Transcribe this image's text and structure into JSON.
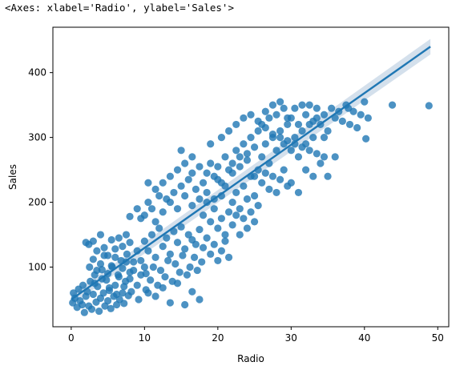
{
  "output_repr": "<Axes: xlabel='Radio', ylabel='Sales'>",
  "colors": {
    "points": "#1f77b4",
    "line": "#1f77b4",
    "band": "#b7cbe0"
  },
  "chart_data": {
    "type": "scatter",
    "xlabel": "Radio",
    "ylabel": "Sales",
    "xlim": [
      -2.5,
      51.5
    ],
    "ylim": [
      8,
      470
    ],
    "xticks": [
      0,
      10,
      20,
      30,
      40,
      50
    ],
    "yticks": [
      100,
      200,
      300,
      400
    ],
    "xtick_labels": [
      "0",
      "10",
      "20",
      "30",
      "40",
      "50"
    ],
    "ytick_labels": [
      "100",
      "200",
      "300",
      "400"
    ],
    "grid": false,
    "legend": "none",
    "regression": {
      "x": [
        0.0,
        49.0
      ],
      "y": [
        50,
        440
      ],
      "ci_halfwidth_at_ends": [
        8,
        12
      ]
    },
    "points": [
      [
        0.2,
        45
      ],
      [
        0.3,
        60
      ],
      [
        0.5,
        52
      ],
      [
        0.8,
        38
      ],
      [
        1.0,
        66
      ],
      [
        1.2,
        48
      ],
      [
        1.5,
        42
      ],
      [
        1.6,
        72
      ],
      [
        1.8,
        30
      ],
      [
        2.0,
        55
      ],
      [
        2.2,
        62
      ],
      [
        2.4,
        40
      ],
      [
        2.6,
        78
      ],
      [
        2.8,
        35
      ],
      [
        3.0,
        58
      ],
      [
        3.2,
        88
      ],
      [
        3.4,
        46
      ],
      [
        3.6,
        70
      ],
      [
        3.8,
        32
      ],
      [
        4.0,
        52
      ],
      [
        4.2,
        96
      ],
      [
        4.4,
        60
      ],
      [
        4.6,
        40
      ],
      [
        4.8,
        80
      ],
      [
        5.0,
        48
      ],
      [
        5.2,
        64
      ],
      [
        5.4,
        36
      ],
      [
        5.6,
        100
      ],
      [
        5.8,
        55
      ],
      [
        6.0,
        72
      ],
      [
        6.2,
        42
      ],
      [
        6.4,
        88
      ],
      [
        6.6,
        50
      ],
      [
        6.8,
        110
      ],
      [
        7.0,
        60
      ],
      [
        7.2,
        44
      ],
      [
        7.4,
        78
      ],
      [
        7.6,
        120
      ],
      [
        7.8,
        56
      ],
      [
        8.0,
        92
      ],
      [
        2.0,
        138
      ],
      [
        2.4,
        135
      ],
      [
        3.0,
        140
      ],
      [
        3.5,
        125
      ],
      [
        4.0,
        150
      ],
      [
        4.5,
        130
      ],
      [
        5.0,
        118
      ],
      [
        5.5,
        142
      ],
      [
        6.0,
        128
      ],
      [
        6.5,
        145
      ],
      [
        7.0,
        132
      ],
      [
        7.5,
        150
      ],
      [
        8.0,
        138
      ],
      [
        8.5,
        108
      ],
      [
        9.0,
        125
      ],
      [
        9.5,
        110
      ],
      [
        2.5,
        100
      ],
      [
        3.0,
        112
      ],
      [
        3.5,
        95
      ],
      [
        4.0,
        105
      ],
      [
        4.5,
        118
      ],
      [
        5.0,
        90
      ],
      [
        5.5,
        102
      ],
      [
        6.0,
        115
      ],
      [
        6.5,
        85
      ],
      [
        7.0,
        98
      ],
      [
        7.5,
        108
      ],
      [
        8.0,
        82
      ],
      [
        8.5,
        95
      ],
      [
        9.0,
        72
      ],
      [
        9.5,
        88
      ],
      [
        10.0,
        100
      ],
      [
        3.2,
        75
      ],
      [
        4.2,
        82
      ],
      [
        5.2,
        68
      ],
      [
        6.2,
        58
      ],
      [
        7.2,
        70
      ],
      [
        8.2,
        62
      ],
      [
        9.2,
        50
      ],
      [
        10.2,
        65
      ],
      [
        10.0,
        140
      ],
      [
        10.5,
        125
      ],
      [
        11.0,
        150
      ],
      [
        11.5,
        115
      ],
      [
        12.0,
        160
      ],
      [
        12.5,
        132
      ],
      [
        13.0,
        145
      ],
      [
        13.5,
        120
      ],
      [
        14.0,
        155
      ],
      [
        14.5,
        138
      ],
      [
        15.0,
        162
      ],
      [
        15.5,
        128
      ],
      [
        16.0,
        150
      ],
      [
        16.5,
        142
      ],
      [
        17.0,
        135
      ],
      [
        17.5,
        158
      ],
      [
        10.2,
        90
      ],
      [
        10.8,
        80
      ],
      [
        11.2,
        100
      ],
      [
        11.8,
        72
      ],
      [
        12.2,
        95
      ],
      [
        12.8,
        85
      ],
      [
        13.2,
        110
      ],
      [
        13.8,
        78
      ],
      [
        14.2,
        105
      ],
      [
        14.8,
        92
      ],
      [
        15.2,
        118
      ],
      [
        15.8,
        88
      ],
      [
        16.2,
        100
      ],
      [
        16.8,
        115
      ],
      [
        17.2,
        95
      ],
      [
        17.8,
        108
      ],
      [
        10.5,
        60
      ],
      [
        11.5,
        55
      ],
      [
        12.5,
        68
      ],
      [
        13.5,
        45
      ],
      [
        14.5,
        75
      ],
      [
        15.5,
        42
      ],
      [
        16.5,
        62
      ],
      [
        17.5,
        50
      ],
      [
        10.0,
        180
      ],
      [
        10.5,
        200
      ],
      [
        11.0,
        190
      ],
      [
        11.5,
        220
      ],
      [
        12.0,
        210
      ],
      [
        12.5,
        230
      ],
      [
        13.0,
        205
      ],
      [
        13.5,
        240
      ],
      [
        14.0,
        215
      ],
      [
        14.5,
        250
      ],
      [
        15.0,
        225
      ],
      [
        15.5,
        260
      ],
      [
        16.0,
        235
      ],
      [
        16.5,
        245
      ],
      [
        17.0,
        220
      ],
      [
        17.5,
        255
      ],
      [
        18.0,
        180
      ],
      [
        18.5,
        200
      ],
      [
        19.0,
        170
      ],
      [
        19.5,
        190
      ],
      [
        20.0,
        160
      ],
      [
        20.5,
        175
      ],
      [
        21.0,
        150
      ],
      [
        21.5,
        185
      ],
      [
        18.0,
        230
      ],
      [
        18.5,
        245
      ],
      [
        19.0,
        260
      ],
      [
        19.5,
        240
      ],
      [
        20.0,
        255
      ],
      [
        20.5,
        230
      ],
      [
        21.0,
        270
      ],
      [
        21.5,
        250
      ],
      [
        18.0,
        130
      ],
      [
        18.5,
        145
      ],
      [
        19.0,
        120
      ],
      [
        19.5,
        135
      ],
      [
        20.0,
        110
      ],
      [
        20.5,
        125
      ],
      [
        21.0,
        140
      ],
      [
        21.5,
        115
      ],
      [
        22.0,
        200
      ],
      [
        22.5,
        215
      ],
      [
        23.0,
        190
      ],
      [
        23.5,
        225
      ],
      [
        24.0,
        205
      ],
      [
        24.5,
        240
      ],
      [
        25.0,
        210
      ],
      [
        25.5,
        250
      ],
      [
        22.0,
        260
      ],
      [
        22.5,
        280
      ],
      [
        23.0,
        270
      ],
      [
        23.5,
        290
      ],
      [
        24.0,
        275
      ],
      [
        24.5,
        300
      ],
      [
        25.0,
        285
      ],
      [
        25.5,
        310
      ],
      [
        22.0,
        165
      ],
      [
        22.5,
        180
      ],
      [
        23.0,
        150
      ],
      [
        23.5,
        175
      ],
      [
        24.0,
        160
      ],
      [
        24.5,
        185
      ],
      [
        25.0,
        170
      ],
      [
        25.5,
        195
      ],
      [
        26.0,
        270
      ],
      [
        26.5,
        290
      ],
      [
        27.0,
        260
      ],
      [
        27.5,
        300
      ],
      [
        28.0,
        280
      ],
      [
        28.5,
        310
      ],
      [
        29.0,
        290
      ],
      [
        29.5,
        320
      ],
      [
        26.0,
        230
      ],
      [
        26.5,
        245
      ],
      [
        27.0,
        220
      ],
      [
        27.5,
        240
      ],
      [
        28.0,
        215
      ],
      [
        28.5,
        235
      ],
      [
        29.0,
        250
      ],
      [
        29.5,
        225
      ],
      [
        26.0,
        320
      ],
      [
        26.5,
        340
      ],
      [
        27.0,
        330
      ],
      [
        27.5,
        350
      ],
      [
        28.0,
        335
      ],
      [
        28.5,
        355
      ],
      [
        29.0,
        345
      ],
      [
        29.5,
        330
      ],
      [
        30.0,
        280
      ],
      [
        30.5,
        300
      ],
      [
        31.0,
        270
      ],
      [
        31.5,
        310
      ],
      [
        32.0,
        290
      ],
      [
        32.5,
        320
      ],
      [
        33.0,
        300
      ],
      [
        33.5,
        330
      ],
      [
        30.0,
        330
      ],
      [
        30.5,
        345
      ],
      [
        31.0,
        320
      ],
      [
        31.5,
        350
      ],
      [
        32.0,
        335
      ],
      [
        32.5,
        350
      ],
      [
        33.0,
        325
      ],
      [
        33.5,
        345
      ],
      [
        30.0,
        230
      ],
      [
        31.0,
        215
      ],
      [
        32.0,
        250
      ],
      [
        33.0,
        240
      ],
      [
        34.0,
        260
      ],
      [
        35.0,
        240
      ],
      [
        36.0,
        270
      ],
      [
        34.5,
        300
      ],
      [
        34.0,
        320
      ],
      [
        34.5,
        335
      ],
      [
        35.0,
        310
      ],
      [
        35.5,
        345
      ],
      [
        36.0,
        330
      ],
      [
        36.5,
        340
      ],
      [
        37.0,
        325
      ],
      [
        37.5,
        350
      ],
      [
        38.0,
        320
      ],
      [
        38.5,
        340
      ],
      [
        39.0,
        315
      ],
      [
        39.5,
        335
      ],
      [
        40.0,
        355
      ],
      [
        40.5,
        330
      ],
      [
        40.2,
        298
      ],
      [
        37.8,
        345
      ],
      [
        43.8,
        350
      ],
      [
        48.8,
        349
      ],
      [
        20.0,
        235
      ],
      [
        21.0,
        225
      ],
      [
        22.0,
        245
      ],
      [
        23.0,
        255
      ],
      [
        24.0,
        265
      ],
      [
        25.0,
        240
      ],
      [
        9.0,
        190
      ],
      [
        9.5,
        175
      ],
      [
        8.0,
        178
      ],
      [
        10.5,
        230
      ],
      [
        11.5,
        170
      ],
      [
        12.5,
        185
      ],
      [
        13.5,
        200
      ],
      [
        14.5,
        190
      ],
      [
        15.5,
        210
      ],
      [
        16.5,
        195
      ],
      [
        17.5,
        205
      ],
      [
        18.5,
        215
      ],
      [
        19.5,
        205
      ],
      [
        20.5,
        210
      ],
      [
        15.0,
        280
      ],
      [
        16.5,
        270
      ],
      [
        19.0,
        290
      ],
      [
        20.5,
        300
      ],
      [
        21.5,
        310
      ],
      [
        22.5,
        320
      ],
      [
        23.5,
        330
      ],
      [
        24.5,
        335
      ],
      [
        25.5,
        325
      ],
      [
        26.5,
        315
      ],
      [
        27.5,
        305
      ],
      [
        28.5,
        300
      ],
      [
        29.5,
        295
      ],
      [
        30.5,
        290
      ],
      [
        31.5,
        285
      ],
      [
        32.5,
        280
      ],
      [
        33.5,
        275
      ],
      [
        34.5,
        270
      ]
    ]
  }
}
